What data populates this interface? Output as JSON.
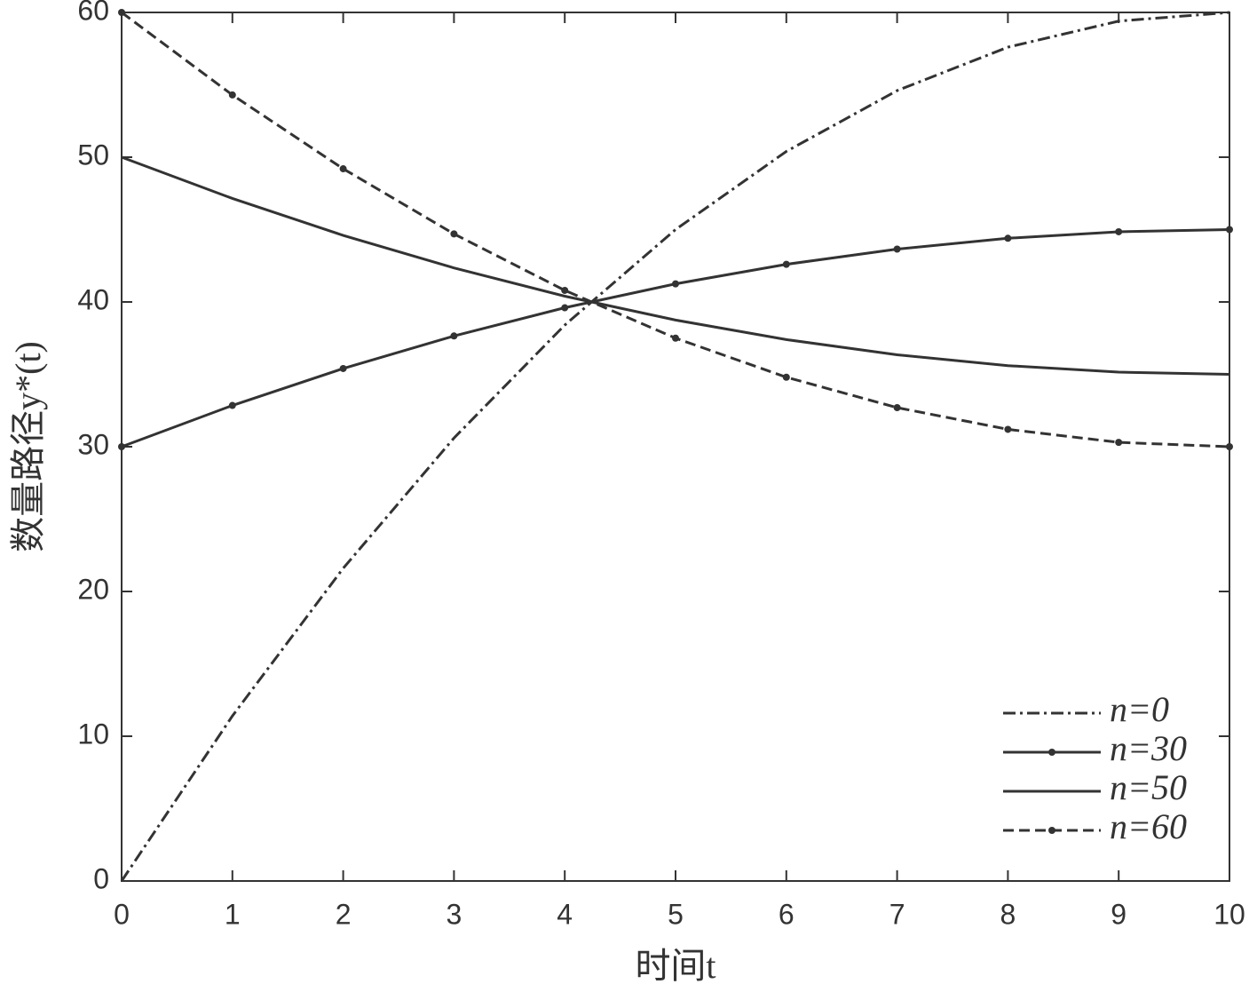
{
  "chart_data": {
    "type": "line",
    "x_label": "时间t",
    "y_label": "数量路径y*(t)",
    "x": [
      0,
      1,
      2,
      3,
      4,
      5,
      6,
      7,
      8,
      9,
      10
    ],
    "series": [
      {
        "name": "n=0",
        "color": "#333333",
        "dash": "14 5 3 5",
        "marker": false,
        "values": [
          0,
          11.4,
          21.6,
          30.6,
          38.4,
          45,
          50.4,
          54.6,
          57.6,
          59.4,
          60
        ]
      },
      {
        "name": "n=30",
        "color": "#333333",
        "dash": "none",
        "marker": true,
        "values": [
          30,
          32.85,
          35.4,
          37.65,
          39.6,
          41.25,
          42.6,
          43.65,
          44.4,
          44.85,
          45
        ]
      },
      {
        "name": "n=50",
        "color": "#333333",
        "dash": "none",
        "marker": false,
        "values": [
          50,
          47.15,
          44.6,
          42.35,
          40.4,
          38.75,
          37.4,
          36.35,
          35.6,
          35.15,
          35
        ]
      },
      {
        "name": "n=60",
        "color": "#333333",
        "dash": "12 6",
        "marker": true,
        "values": [
          60,
          54.3,
          49.2,
          44.7,
          40.8,
          37.5,
          34.8,
          32.7,
          31.2,
          30.3,
          30
        ]
      }
    ],
    "xlim": [
      0,
      10
    ],
    "xticks": [
      0,
      1,
      2,
      3,
      4,
      5,
      6,
      7,
      8,
      9,
      10
    ],
    "ylim": [
      0,
      60
    ],
    "yticks": [
      0,
      10,
      20,
      30,
      40,
      50,
      60
    ],
    "grid": false,
    "legend": "lower right"
  }
}
